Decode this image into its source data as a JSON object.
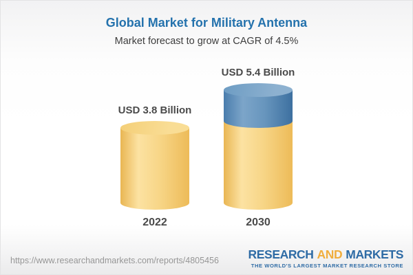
{
  "page": {
    "title": "Global Market for Military Antenna",
    "subtitle": "Market forecast to grow at CAGR of 4.5%"
  },
  "chart_data": {
    "type": "bar",
    "variant": "3d-cylinder",
    "title": "Global Market for Military Antenna",
    "subtitle": "Market forecast to grow at CAGR of 4.5%",
    "cagr_percent": 4.5,
    "unit": "USD Billion",
    "categories": [
      "2022",
      "2030"
    ],
    "values": [
      3.8,
      5.4
    ],
    "axes": "none",
    "grid": false,
    "legend": "none",
    "bars": [
      {
        "year": "2022",
        "label": "USD 3.8 Billion",
        "value": 3.8,
        "segments": [
          {
            "name": "base-market",
            "color": "gold",
            "value": 3.8
          }
        ]
      },
      {
        "year": "2030",
        "label": "USD 5.4 Billion",
        "value": 5.4,
        "segments": [
          {
            "name": "base-market",
            "color": "gold",
            "value": 3.8
          },
          {
            "name": "forecast-growth",
            "color": "blue",
            "value": 1.6
          }
        ]
      }
    ]
  },
  "footer": {
    "url": "https://www.researchandmarkets.com/reports/4805456",
    "logo": {
      "word1": "RESEARCH",
      "word2": "AND",
      "word3": "MARKETS",
      "tagline": "THE WORLD'S LARGEST MARKET RESEARCH STORE"
    }
  },
  "colors": {
    "title-blue": "#2472ad",
    "text-dark": "#3d3d3d",
    "label-gray": "#4a4a4a",
    "url-gray": "#969696",
    "logo-blue": "#2e6ba5",
    "logo-gold": "#f0ad3d",
    "gold-edge": "#e9b653",
    "gold-light": "#fce2a2",
    "gold-mid": "#f7d586",
    "gold-dark": "#edbb58",
    "gold-cap1": "#f4cf78",
    "gold-cap2": "#f9dd95",
    "blue-edge": "#4a7dad",
    "blue-light": "#7ca5c9",
    "blue-mid": "#6795bd",
    "blue-dark": "#3d70a0",
    "blue-cap1": "#6d9cc3",
    "blue-cap2": "#8db1d0"
  }
}
